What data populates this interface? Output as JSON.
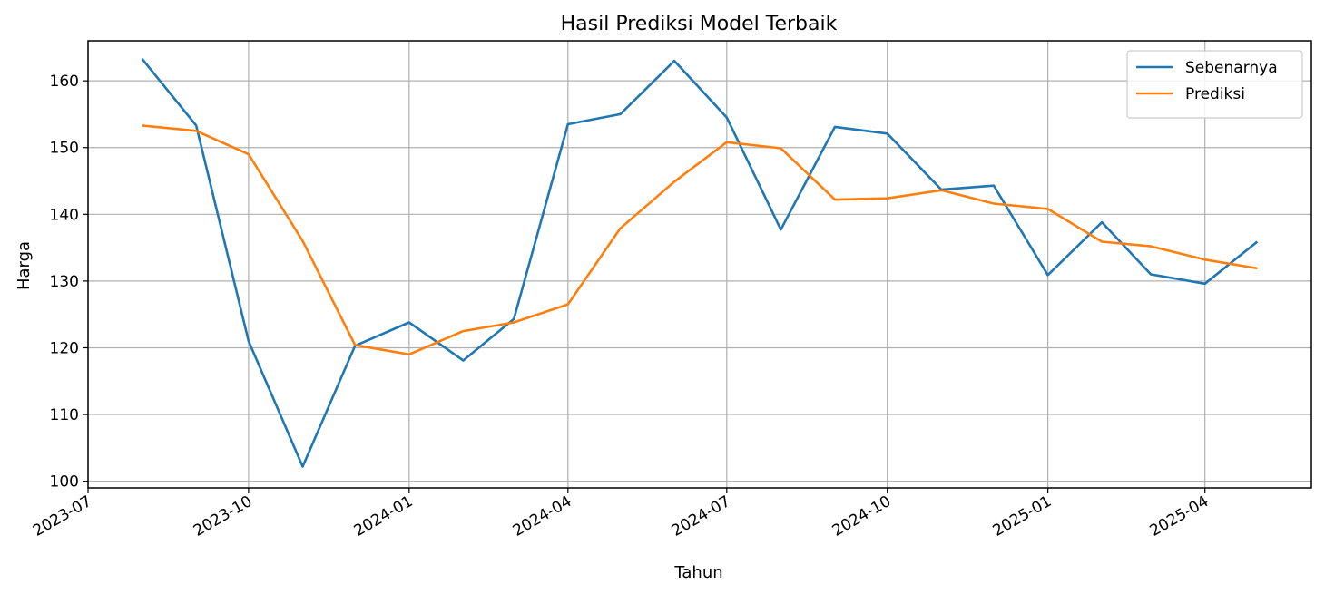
{
  "chart_data": {
    "type": "line",
    "title": "Hasil Prediksi Model Terbaik",
    "xlabel": "Tahun",
    "ylabel": "Harga",
    "x_axis_type": "date",
    "xlim": [
      "2023-07-01",
      "2025-06-01"
    ],
    "ylim": [
      99,
      166
    ],
    "x_ticks": [
      "2023-07",
      "2023-10",
      "2024-01",
      "2024-04",
      "2024-07",
      "2024-10",
      "2025-01",
      "2025-04"
    ],
    "y_ticks": [
      100,
      110,
      120,
      130,
      140,
      150,
      160
    ],
    "grid": true,
    "legend_position": "top-right",
    "x": [
      "2023-08-01",
      "2023-09-01",
      "2023-10-01",
      "2023-11-01",
      "2023-12-01",
      "2024-01-01",
      "2024-02-01",
      "2024-03-01",
      "2024-04-01",
      "2024-05-01",
      "2024-06-01",
      "2024-07-01",
      "2024-08-01",
      "2024-09-01",
      "2024-10-01",
      "2024-11-01",
      "2024-12-01",
      "2025-01-01",
      "2025-02-01",
      "2025-03-01",
      "2025-04-01",
      "2025-05-01"
    ],
    "series": [
      {
        "name": "Sebenarnya",
        "color": "#1f77b4",
        "values": [
          163.3,
          153.3,
          121.0,
          102.2,
          120.3,
          123.8,
          118.1,
          124.3,
          153.5,
          155.0,
          163.0,
          154.5,
          137.7,
          153.1,
          152.1,
          143.7,
          144.3,
          130.9,
          138.8,
          131.0,
          129.6,
          135.9
        ]
      },
      {
        "name": "Prediksi",
        "color": "#ff7f0e",
        "values": [
          153.3,
          152.5,
          149.0,
          136.0,
          120.4,
          119.0,
          122.5,
          123.8,
          126.5,
          137.9,
          144.9,
          150.8,
          149.9,
          142.2,
          142.4,
          143.6,
          141.6,
          140.8,
          135.9,
          135.2,
          133.2,
          131.9
        ]
      }
    ]
  }
}
